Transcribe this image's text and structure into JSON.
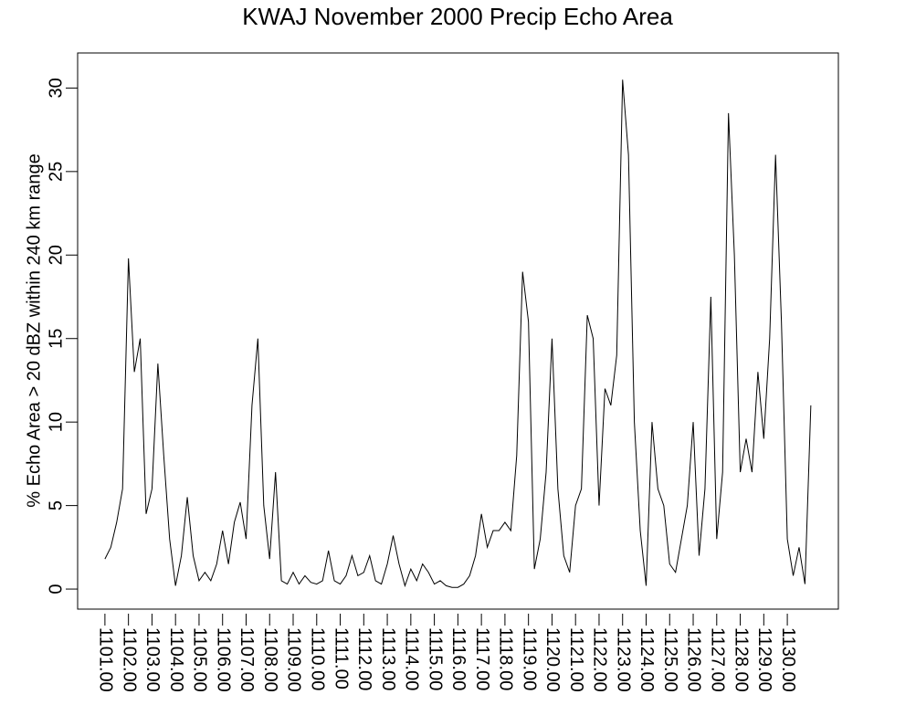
{
  "chart_data": {
    "type": "line",
    "title": "KWAJ November 2000 Precip Echo Area",
    "y_label": "% Echo Area > 20 dBZ within 240 km range",
    "color": "#000000",
    "x": [
      1101,
      1101.25,
      1101.5,
      1101.75,
      1102,
      1102.25,
      1102.5,
      1102.75,
      1103,
      1103.25,
      1103.5,
      1103.75,
      1104,
      1104.25,
      1104.5,
      1104.75,
      1105,
      1105.25,
      1105.5,
      1105.75,
      1106,
      1106.25,
      1106.5,
      1106.75,
      1107,
      1107.25,
      1107.5,
      1107.75,
      1108,
      1108.25,
      1108.5,
      1108.75,
      1109,
      1109.25,
      1109.5,
      1109.75,
      1110,
      1110.25,
      1110.5,
      1110.75,
      1111,
      1111.25,
      1111.5,
      1111.75,
      1112,
      1112.25,
      1112.5,
      1112.75,
      1113,
      1113.25,
      1113.5,
      1113.75,
      1114,
      1114.25,
      1114.5,
      1114.75,
      1115,
      1115.25,
      1115.5,
      1115.75,
      1116,
      1116.25,
      1116.5,
      1116.75,
      1117,
      1117.25,
      1117.5,
      1117.75,
      1118,
      1118.25,
      1118.5,
      1118.75,
      1119,
      1119.25,
      1119.5,
      1119.75,
      1120,
      1120.25,
      1120.5,
      1120.75,
      1121,
      1121.25,
      1121.5,
      1121.75,
      1122,
      1122.25,
      1122.5,
      1122.75,
      1123,
      1123.25,
      1123.5,
      1123.75,
      1124,
      1124.25,
      1124.5,
      1124.75,
      1125,
      1125.25,
      1125.5,
      1125.75,
      1126,
      1126.25,
      1126.5,
      1126.75,
      1127,
      1127.25,
      1127.5,
      1127.75,
      1128,
      1128.25,
      1128.5,
      1128.75,
      1129,
      1129.25,
      1129.5,
      1129.75,
      1130,
      1130.25,
      1130.5,
      1130.75,
      1131
    ],
    "values": [
      1.8,
      2.5,
      4,
      6,
      19.8,
      13,
      15,
      4.5,
      6,
      13.5,
      8,
      3,
      0.2,
      2,
      5.5,
      2,
      0.5,
      1,
      0.5,
      1.5,
      3.5,
      1.5,
      4,
      5.2,
      3,
      11,
      15,
      5,
      1.8,
      7,
      0.5,
      0.3,
      1,
      0.3,
      0.8,
      0.4,
      0.3,
      0.5,
      2.3,
      0.5,
      0.3,
      0.8,
      2,
      0.8,
      1,
      2,
      0.5,
      0.3,
      1.5,
      3.2,
      1.5,
      0.2,
      1.2,
      0.5,
      1.5,
      1,
      0.3,
      0.5,
      0.2,
      0.1,
      0.1,
      0.3,
      0.8,
      2,
      4.5,
      2.5,
      3.5,
      3.5,
      4,
      3.5,
      8,
      19,
      16,
      1.2,
      3,
      7,
      15,
      6,
      2,
      1,
      5,
      6,
      16.4,
      15,
      5,
      12,
      11,
      14,
      30.5,
      26,
      10,
      3.5,
      0.2,
      10,
      6,
      5,
      1.5,
      1,
      3,
      5,
      10,
      2,
      6,
      17.5,
      3,
      7,
      28.5,
      20,
      7,
      9,
      7,
      13,
      9,
      15,
      26,
      16,
      3,
      0.8,
      2.5,
      0.3,
      11
    ],
    "xlim": [
      1099.84,
      1132.17
    ],
    "ylim": [
      -1.2,
      32.1
    ],
    "xticks": [
      {
        "value": 1101,
        "label": "1101.00"
      },
      {
        "value": 1102,
        "label": "1102.00"
      },
      {
        "value": 1103,
        "label": "1103.00"
      },
      {
        "value": 1104,
        "label": "1104.00"
      },
      {
        "value": 1105,
        "label": "1105.00"
      },
      {
        "value": 1106,
        "label": "1106.00"
      },
      {
        "value": 1107,
        "label": "1107.00"
      },
      {
        "value": 1108,
        "label": "1108.00"
      },
      {
        "value": 1109,
        "label": "1109.00"
      },
      {
        "value": 1110,
        "label": "1110.00"
      },
      {
        "value": 1111,
        "label": "1111.00"
      },
      {
        "value": 1112,
        "label": "1112.00"
      },
      {
        "value": 1113,
        "label": "1113.00"
      },
      {
        "value": 1114,
        "label": "1114.00"
      },
      {
        "value": 1115,
        "label": "1115.00"
      },
      {
        "value": 1116,
        "label": "1116.00"
      },
      {
        "value": 1117,
        "label": "1117.00"
      },
      {
        "value": 1118,
        "label": "1118.00"
      },
      {
        "value": 1119,
        "label": "1119.00"
      },
      {
        "value": 1120,
        "label": "1120.00"
      },
      {
        "value": 1121,
        "label": "1121.00"
      },
      {
        "value": 1122,
        "label": "1122.00"
      },
      {
        "value": 1123,
        "label": "1123.00"
      },
      {
        "value": 1124,
        "label": "1124.00"
      },
      {
        "value": 1125,
        "label": "1125.00"
      },
      {
        "value": 1126,
        "label": "1126.00"
      },
      {
        "value": 1127,
        "label": "1127.00"
      },
      {
        "value": 1128,
        "label": "1128.00"
      },
      {
        "value": 1129,
        "label": "1129.00"
      },
      {
        "value": 1130,
        "label": "1130.00"
      }
    ],
    "yticks": [
      0,
      5,
      10,
      15,
      20,
      25,
      30
    ]
  }
}
